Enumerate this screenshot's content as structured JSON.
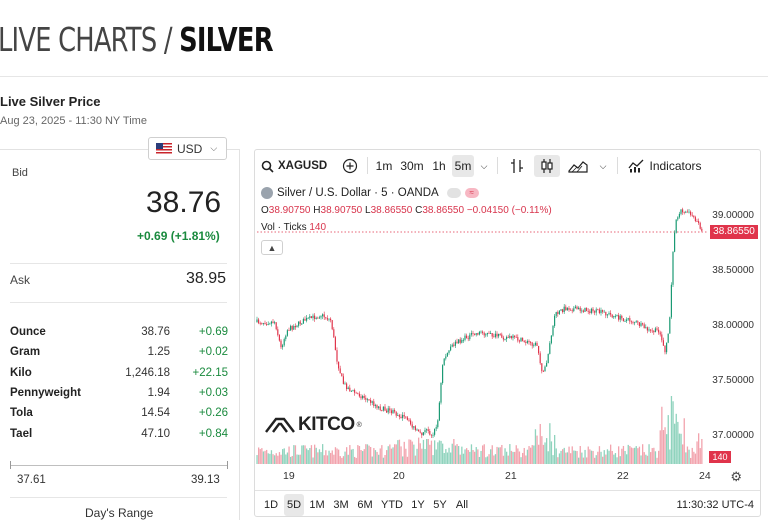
{
  "header": {
    "title_light": "LIVE CHARTS / ",
    "title_bold": "SILVER"
  },
  "live": {
    "title": "Live Silver Price",
    "timestamp": "Aug 23, 2025 - 11:30 NY Time"
  },
  "currency": {
    "selected": "USD",
    "flag_icon": "us-flag-icon"
  },
  "bid": {
    "label": "Bid",
    "value": "38.76",
    "change": "+0.69 (+1.81%)"
  },
  "ask": {
    "label": "Ask",
    "value": "38.95"
  },
  "units": [
    {
      "name": "Ounce",
      "price": "38.76",
      "change": "+0.69"
    },
    {
      "name": "Gram",
      "price": "1.25",
      "change": "+0.02"
    },
    {
      "name": "Kilo",
      "price": "1,246.18",
      "change": "+22.15"
    },
    {
      "name": "Pennyweight",
      "price": "1.94",
      "change": "+0.03"
    },
    {
      "name": "Tola",
      "price": "14.54",
      "change": "+0.26"
    },
    {
      "name": "Tael",
      "price": "47.10",
      "change": "+0.84"
    }
  ],
  "day_range": {
    "low": "37.61",
    "high": "39.13",
    "label": "Day's Range"
  },
  "chart": {
    "symbol": "XAGUSD",
    "intervals": [
      "1m",
      "30m",
      "1h",
      "5m"
    ],
    "active_interval": "5m",
    "indicators_label": "Indicators",
    "legend_title": "Silver / U.S. Dollar · 5 · OANDA",
    "ohlc": {
      "o_label": "O",
      "o": "38.90750",
      "h_label": "H",
      "h": "38.90750",
      "l_label": "L",
      "l": "38.86550",
      "c_label": "C",
      "c": "38.86550",
      "change": "−0.04150 (−0.11%)"
    },
    "volume_label": "Vol · Ticks",
    "volume_value": "140",
    "last_price": "38.86550",
    "y_ticks": [
      "39.00000",
      "38.50000",
      "38.00000",
      "37.50000",
      "37.00000"
    ],
    "x_ticks": [
      "19",
      "20",
      "21",
      "22",
      "24"
    ],
    "ranges": [
      "1D",
      "5D",
      "1M",
      "3M",
      "6M",
      "YTD",
      "1Y",
      "5Y",
      "All"
    ],
    "active_range": "5D",
    "clock": "11:30:32 UTC-4",
    "logo_text": "KITCO",
    "logo_mark": "®",
    "up_color": "#1a9a73",
    "down_color": "#e0344b"
  }
}
